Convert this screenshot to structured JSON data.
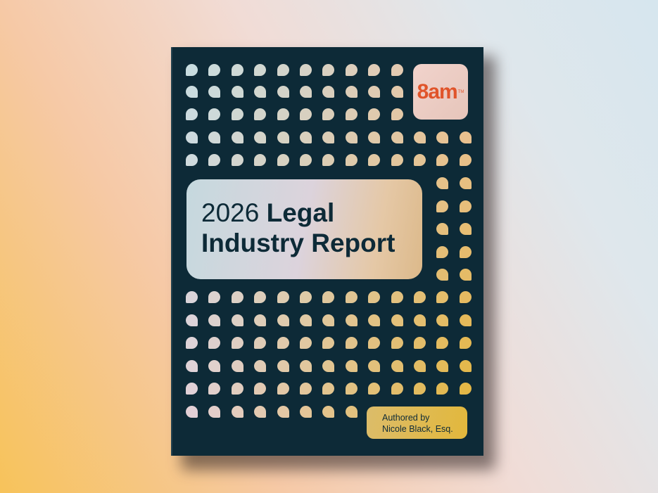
{
  "cover": {
    "logo": "8am",
    "logo_mark": "TM",
    "title_year": "2026",
    "title_line1": "Legal",
    "title_line2": "Industry Report",
    "author_label": "Authored by",
    "author_name": "Nicole Black, Esq."
  },
  "colors": {
    "cover_background": "#0d2a37",
    "logo_accent": "#e0542a",
    "dot_top_left": "#c8dde0",
    "dot_right": "#eac3a2",
    "dot_bottom_right": "#e2b640",
    "dot_bottom_left": "#e3d0d6"
  }
}
